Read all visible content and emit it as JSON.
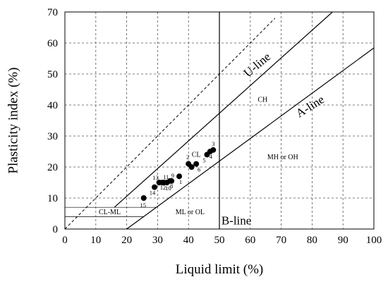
{
  "chart_data": {
    "type": "scatter",
    "title": "",
    "xlabel": "Liquid limit (%)",
    "ylabel": "Plasticity index (%)",
    "xlim": [
      0,
      100
    ],
    "ylim": [
      0,
      70
    ],
    "xticks": [
      "0",
      "10",
      "20",
      "30",
      "40",
      "50",
      "60",
      "70",
      "80",
      "90",
      "100"
    ],
    "yticks": [
      "0",
      "10",
      "20",
      "30",
      "40",
      "50",
      "60",
      "70"
    ],
    "grid": true,
    "grid_style": "dashed",
    "points": [
      {
        "label": "1",
        "x": 37.0,
        "y": 17.0
      },
      {
        "label": "2",
        "x": 40.0,
        "y": 21.0
      },
      {
        "label": "3",
        "x": 48.0,
        "y": 25.5
      },
      {
        "label": "4",
        "x": 47.0,
        "y": 25.0
      },
      {
        "label": "5",
        "x": 46.0,
        "y": 24.0
      },
      {
        "label": "6",
        "x": 42.5,
        "y": 21.0
      },
      {
        "label": "7",
        "x": 41.0,
        "y": 20.0
      },
      {
        "label": "8",
        "x": 34.5,
        "y": 15.5
      },
      {
        "label": "9",
        "x": 34.0,
        "y": 15.5
      },
      {
        "label": "10",
        "x": 33.0,
        "y": 15.0
      },
      {
        "label": "11",
        "x": 32.0,
        "y": 15.0
      },
      {
        "label": "12",
        "x": 31.5,
        "y": 15.0
      },
      {
        "label": "13",
        "x": 30.5,
        "y": 15.0
      },
      {
        "label": "14",
        "x": 29.0,
        "y": 13.5
      },
      {
        "label": "15",
        "x": 25.5,
        "y": 10.0
      }
    ],
    "lines": [
      {
        "name": "U-line",
        "style": "solid",
        "points": [
          [
            16,
            7
          ],
          [
            86.6,
            70
          ]
        ]
      },
      {
        "name": "A-line",
        "style": "solid",
        "points": [
          [
            20,
            0
          ],
          [
            100,
            58.4
          ]
        ]
      },
      {
        "name": "B-line",
        "style": "solid",
        "points": [
          [
            50,
            0
          ],
          [
            50,
            70
          ]
        ]
      },
      {
        "name": "",
        "style": "dashed",
        "points": [
          [
            0,
            0
          ],
          [
            68,
            68
          ]
        ]
      }
    ],
    "annotations": [
      {
        "text": "U-line",
        "x": 63,
        "y": 52,
        "size": 17,
        "rotate": -40
      },
      {
        "text": "A-line",
        "x": 80,
        "y": 38.5,
        "size": 17,
        "rotate": -32
      },
      {
        "text": "B-line",
        "x": 55.5,
        "y": 1.5,
        "size": 17,
        "rotate": 0
      },
      {
        "text": "CH",
        "x": 64,
        "y": 41,
        "size": 10,
        "rotate": 0
      },
      {
        "text": "CL",
        "x": 42.5,
        "y": 23.3,
        "size": 10,
        "rotate": 0
      },
      {
        "text": "MH or OH",
        "x": 70.5,
        "y": 22.5,
        "size": 10,
        "rotate": 0
      },
      {
        "text": "ML or OL",
        "x": 40.5,
        "y": 4.8,
        "size": 10,
        "rotate": 0
      },
      {
        "text": "CL-ML",
        "x": 14.5,
        "y": 4.8,
        "size": 10,
        "rotate": 0
      }
    ],
    "clml_band": {
      "y_low": 4,
      "y_high": 7,
      "x_start": 0
    }
  }
}
